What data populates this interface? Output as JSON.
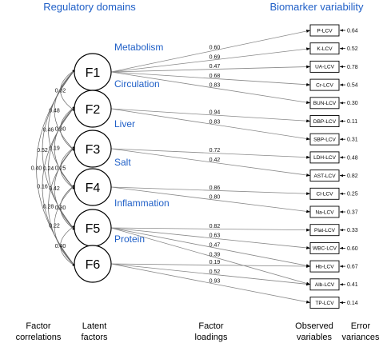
{
  "headers": {
    "left": "Regulatory domains",
    "right": "Biomarker variability"
  },
  "factors": [
    {
      "label": "F1",
      "domain": "Metabolism"
    },
    {
      "label": "F2",
      "domain": "Circulation"
    },
    {
      "label": "F3",
      "domain": "Liver"
    },
    {
      "label": "F4",
      "domain": "Salt"
    },
    {
      "label": "F5",
      "domain": "Inflammation"
    },
    {
      "label": "F6",
      "domain": "Protein"
    }
  ],
  "observed": [
    {
      "label": "P-LCV",
      "error": "0.64"
    },
    {
      "label": "K-LCV",
      "error": "0.52"
    },
    {
      "label": "UA-LCV",
      "error": "0.78"
    },
    {
      "label": "Cr-LCV",
      "error": "0.54"
    },
    {
      "label": "BUN-LCV",
      "error": "0.30"
    },
    {
      "label": "DBP-LCV",
      "error": "0.11"
    },
    {
      "label": "SBP-LCV",
      "error": "0.31"
    },
    {
      "label": "LDH-LCV",
      "error": "0.48"
    },
    {
      "label": "AST-LCV",
      "error": "0.82"
    },
    {
      "label": "Cl-LCV",
      "error": "0.25"
    },
    {
      "label": "Na-LCV",
      "error": "0.37"
    },
    {
      "label": "Plat-LCV",
      "error": "0.33"
    },
    {
      "label": "WBC-LCV",
      "error": "0.60"
    },
    {
      "label": "Hb-LCV",
      "error": "0.67"
    },
    {
      "label": "Alb-LCV",
      "error": "0.41"
    },
    {
      "label": "TP-LCV",
      "error": "0.14"
    }
  ],
  "loadings": [
    {
      "factor": 0,
      "target": 0,
      "value": "0.60"
    },
    {
      "factor": 0,
      "target": 1,
      "value": "0.69"
    },
    {
      "factor": 0,
      "target": 2,
      "value": "0.47"
    },
    {
      "factor": 0,
      "target": 3,
      "value": "0.68"
    },
    {
      "factor": 0,
      "target": 4,
      "value": "0.83"
    },
    {
      "factor": 1,
      "target": 5,
      "value": "0.94"
    },
    {
      "factor": 1,
      "target": 6,
      "value": "0.83"
    },
    {
      "factor": 2,
      "target": 7,
      "value": "0.72"
    },
    {
      "factor": 2,
      "target": 8,
      "value": "0.42"
    },
    {
      "factor": 3,
      "target": 9,
      "value": "0.86"
    },
    {
      "factor": 3,
      "target": 10,
      "value": "0.80"
    },
    {
      "factor": 4,
      "target": 11,
      "value": "0.82"
    },
    {
      "factor": 4,
      "target": 12,
      "value": "0.63"
    },
    {
      "factor": 4,
      "target": 13,
      "value": "0.47"
    },
    {
      "factor": 4,
      "target": 14,
      "value": "0.39"
    },
    {
      "factor": 5,
      "target": 13,
      "value": "0.19"
    },
    {
      "factor": 5,
      "target": 14,
      "value": "0.52"
    },
    {
      "factor": 5,
      "target": 15,
      "value": "0.93"
    }
  ],
  "correlations": [
    {
      "from": 0,
      "to": 1,
      "value": "0.32"
    },
    {
      "from": 0,
      "to": 2,
      "value": "0.48"
    },
    {
      "from": 1,
      "to": 2,
      "value": "0.30"
    },
    {
      "from": 0,
      "to": 3,
      "value": "0.46"
    },
    {
      "from": 1,
      "to": 3,
      "value": "0.19"
    },
    {
      "from": 0,
      "to": 4,
      "value": "0.52"
    },
    {
      "from": 2,
      "to": 3,
      "value": "0.25"
    },
    {
      "from": 1,
      "to": 4,
      "value": "0.24"
    },
    {
      "from": 0,
      "to": 5,
      "value": "0.40"
    },
    {
      "from": 2,
      "to": 4,
      "value": "0.42"
    },
    {
      "from": 1,
      "to": 5,
      "value": "0.16"
    },
    {
      "from": 3,
      "to": 4,
      "value": "0.30"
    },
    {
      "from": 2,
      "to": 5,
      "value": "0.28"
    },
    {
      "from": 3,
      "to": 5,
      "value": "0.22"
    },
    {
      "from": 4,
      "to": 5,
      "value": "0.40"
    }
  ],
  "footer": [
    [
      "Factor",
      "correlations"
    ],
    [
      "Latent",
      "factors"
    ],
    [
      "Factor",
      "loadings"
    ],
    [
      "Observed",
      "variables"
    ],
    [
      "Error",
      "variances"
    ]
  ]
}
